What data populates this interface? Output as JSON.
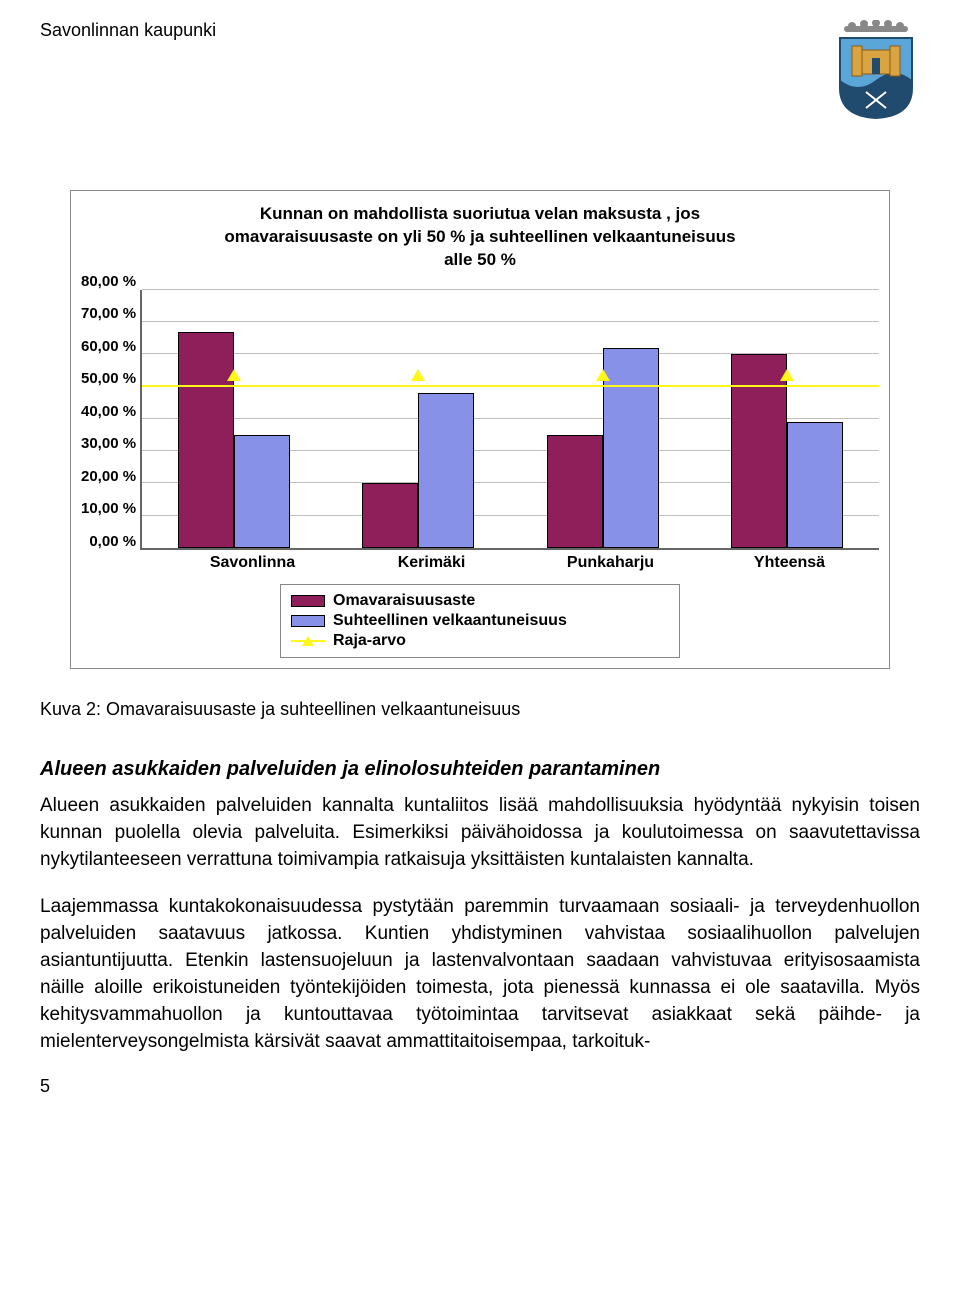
{
  "header": {
    "title": "Savonlinnan kaupunki"
  },
  "chart": {
    "type": "bar",
    "title_lines": [
      "Kunnan on mahdollista suoriutua velan maksusta , jos",
      "omavaraisuusaste on yli 50 % ja suhteellinen velkaantuneisuus",
      "alle 50 %"
    ],
    "y_ticks": [
      "80,00 %",
      "70,00 %",
      "60,00 %",
      "50,00 %",
      "40,00 %",
      "30,00 %",
      "20,00 %",
      "10,00 %",
      "0,00 %"
    ],
    "y_max": 80,
    "categories": [
      "Savonlinna",
      "Kerimäki",
      "Punkaharju",
      "Yhteensä"
    ],
    "series": [
      {
        "name": "Omavaraisuusaste",
        "color": "#8e1f5a",
        "values": [
          67,
          20,
          35,
          60
        ]
      },
      {
        "name": "Suhteellinen velkaantuneisuus",
        "color": "#8891e8",
        "values": [
          35,
          48,
          62,
          39
        ]
      }
    ],
    "raja": {
      "name": "Raja-arvo",
      "value": 50,
      "color": "#fff71a"
    },
    "grid_color": "#bfbfbf",
    "background": "#ffffff"
  },
  "caption": "Kuva 2: Omavaraisuusaste ja suhteellinen velkaantuneisuus",
  "subheading": "Alueen asukkaiden palveluiden ja elinolosuhteiden parantaminen",
  "paragraphs": [
    "Alueen asukkaiden palveluiden kannalta kuntaliitos lisää mahdollisuuksia hyödyntää nykyisin toisen kunnan puolella olevia palveluita. Esimerkiksi päivähoidossa ja koulutoimessa on saavutettavissa nykytilanteeseen verrattuna toimivampia ratkaisuja yksittäisten kuntalaisten kannalta.",
    "Laajemmassa kuntakokonaisuudessa pystytään paremmin turvaamaan sosiaali- ja terveydenhuollon palveluiden saatavuus jatkossa. Kuntien yhdistyminen vahvistaa sosiaalihuollon palvelujen asiantuntijuutta. Etenkin lastensuojeluun ja lastenvalvontaan saadaan vahvistuvaa erityisosaamista näille aloille erikoistuneiden työntekijöiden toimesta, jota pienessä kunnassa ei ole saatavilla. Myös kehitysvammahuollon ja kuntouttavaa työtoimintaa tarvitsevat asiakkaat sekä päihde- ja mielenterveysongelmista kärsivät saavat ammattitaitoisempaa, tarkoituk-"
  ],
  "page_number": "5"
}
